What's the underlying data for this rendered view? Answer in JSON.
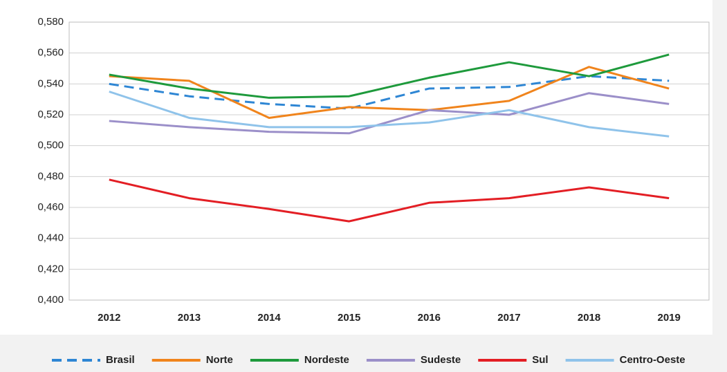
{
  "chart_data": {
    "type": "line",
    "categories": [
      "2012",
      "2013",
      "2014",
      "2015",
      "2016",
      "2017",
      "2018",
      "2019"
    ],
    "series": [
      {
        "name": "Brasil",
        "color": "#2e86d4",
        "style": "dashed",
        "values": [
          0.54,
          0.532,
          0.527,
          0.524,
          0.537,
          0.538,
          0.545,
          0.542
        ]
      },
      {
        "name": "Norte",
        "color": "#f0841c",
        "style": "solid",
        "values": [
          0.545,
          0.542,
          0.518,
          0.525,
          0.523,
          0.529,
          0.551,
          0.537
        ]
      },
      {
        "name": "Nordeste",
        "color": "#1e9a3c",
        "style": "solid",
        "values": [
          0.546,
          0.537,
          0.531,
          0.532,
          0.544,
          0.554,
          0.545,
          0.559
        ]
      },
      {
        "name": "Sudeste",
        "color": "#9b8fc9",
        "style": "solid",
        "values": [
          0.516,
          0.512,
          0.509,
          0.508,
          0.523,
          0.52,
          0.534,
          0.527
        ]
      },
      {
        "name": "Sul",
        "color": "#e31e24",
        "style": "solid",
        "values": [
          0.478,
          0.466,
          0.459,
          0.451,
          0.463,
          0.466,
          0.473,
          0.466
        ]
      },
      {
        "name": "Centro-Oeste",
        "color": "#8fc3ea",
        "style": "solid",
        "values": [
          0.535,
          0.518,
          0.512,
          0.512,
          0.515,
          0.523,
          0.512,
          0.506
        ]
      }
    ],
    "ylim": [
      0.4,
      0.58
    ],
    "yticks": [
      {
        "value": 0.4,
        "label": "0,400"
      },
      {
        "value": 0.42,
        "label": "0,420"
      },
      {
        "value": 0.44,
        "label": "0,440"
      },
      {
        "value": 0.46,
        "label": "0,460"
      },
      {
        "value": 0.48,
        "label": "0,480"
      },
      {
        "value": 0.5,
        "label": "0,500"
      },
      {
        "value": 0.52,
        "label": "0,520"
      },
      {
        "value": 0.54,
        "label": "0,540"
      },
      {
        "value": 0.56,
        "label": "0,560"
      },
      {
        "value": 0.58,
        "label": "0,580"
      }
    ],
    "grid": true,
    "legend": "bottom"
  }
}
